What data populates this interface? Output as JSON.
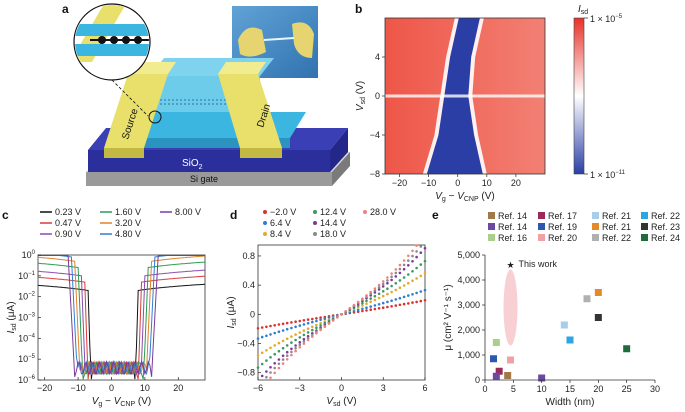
{
  "figure": {
    "panel_letters": [
      "a",
      "b",
      "c",
      "d",
      "e"
    ],
    "panel_a": {
      "source_label": "Source",
      "drain_label": "Drain",
      "oxide_label": "SiO",
      "oxide_subscript": "2",
      "gate_label": "Si gate"
    },
    "panel_b": {
      "colorbar_title": "I",
      "colorbar_title_sub": "sd",
      "colorbar_max": "1 × 10",
      "colorbar_max_exp": "−5",
      "colorbar_min": "1 × 10",
      "colorbar_min_exp": "−11"
    }
  },
  "chart_data": [
    {
      "panel": "b",
      "type": "heatmap",
      "xlabel": "V_g − V_CNP (V)",
      "ylabel": "V_sd (V)",
      "xlim": [
        -25,
        30
      ],
      "ylim": [
        -8,
        8
      ],
      "x_ticks": [
        -20,
        -10,
        0,
        10,
        20
      ],
      "y_ticks": [
        -8,
        -4,
        0,
        4
      ],
      "colormap": [
        "#2a3ea6",
        "#ffffff",
        "#e8312a"
      ],
      "low_region_edges": {
        "vsd": [
          8,
          4,
          0,
          -4,
          -8
        ],
        "left_vg": [
          -1,
          -4,
          -6,
          -8,
          -12
        ],
        "right_vg": [
          9,
          6,
          5,
          7,
          10
        ]
      }
    },
    {
      "panel": "c",
      "type": "line",
      "xlabel": "V_g − V_CNP (V)",
      "ylabel": "I_sd (μA)",
      "yscale": "log",
      "xlim": [
        -22,
        28
      ],
      "ylim": [
        1e-06,
        1
      ],
      "x_ticks": [
        -20,
        -10,
        0,
        10,
        20
      ],
      "y_ticks": [
        "10^0",
        "10^-1",
        "10^-2",
        "10^-3",
        "10^-4",
        "10^-5",
        "10^-6"
      ],
      "series": [
        {
          "name": "0.23 V",
          "color": "#111111",
          "on": 0.02,
          "left_edge": -7,
          "right_edge": 8
        },
        {
          "name": "0.47 V",
          "color": "#d93b3b",
          "on": 0.05,
          "left_edge": -8,
          "right_edge": 9
        },
        {
          "name": "0.90 V",
          "color": "#8a4bb0",
          "on": 0.1,
          "left_edge": -9,
          "right_edge": 10
        },
        {
          "name": "1.60 V",
          "color": "#2e9a52",
          "on": 0.25,
          "left_edge": -10,
          "right_edge": 11
        },
        {
          "name": "3.20 V",
          "color": "#e0832a",
          "on": 0.5,
          "left_edge": -11,
          "right_edge": 12
        },
        {
          "name": "4.80 V",
          "color": "#2f7fd0",
          "on": 0.8,
          "left_edge": -12,
          "right_edge": 13
        },
        {
          "name": "8.00 V",
          "color": "#7a3a9a",
          "on": 1.2,
          "left_edge": -13,
          "right_edge": 14
        }
      ]
    },
    {
      "panel": "d",
      "type": "scatter",
      "xlabel": "V_sd (V)",
      "ylabel": "I_sd (μA)",
      "xlim": [
        -6,
        6
      ],
      "ylim": [
        -0.9,
        0.95
      ],
      "x_ticks": [
        -6,
        -3,
        0,
        3,
        6
      ],
      "y_ticks": [
        -0.8,
        -0.4,
        0,
        0.4,
        0.8
      ],
      "series": [
        {
          "name": "−2.0 V",
          "color": "#d9342b",
          "slope": 0.03
        },
        {
          "name": "6.4 V",
          "color": "#2f7fd0",
          "slope": 0.05
        },
        {
          "name": "8.4 V",
          "color": "#e5a92b",
          "slope": 0.08
        },
        {
          "name": "12.4 V",
          "color": "#3a9a62",
          "slope": 0.1
        },
        {
          "name": "14.4 V",
          "color": "#7a3a9a",
          "slope": 0.12
        },
        {
          "name": "18.0 V",
          "color": "#8a8a8a",
          "slope": 0.13
        },
        {
          "name": "28.0 V",
          "color": "#f08080",
          "slope": 0.14
        }
      ]
    },
    {
      "panel": "e",
      "type": "scatter",
      "xlabel": "Width (nm)",
      "ylabel": "μ (cm² V⁻¹ s⁻¹)",
      "xlim": [
        0,
        30
      ],
      "ylim": [
        0,
        5000
      ],
      "x_ticks": [
        0,
        5,
        10,
        15,
        20,
        25,
        30
      ],
      "y_ticks": [
        0,
        1000,
        2000,
        3000,
        4000,
        5000
      ],
      "this_work": {
        "label": "This work",
        "x": 4.5,
        "y": 4650,
        "color": "#d9342b"
      },
      "legend": [
        {
          "name": "Ref. 14",
          "color": "#a0784a"
        },
        {
          "name": "Ref. 17",
          "color": "#9b2a5a"
        },
        {
          "name": "Ref. 21",
          "color": "#a9cde8"
        },
        {
          "name": "Ref. 22",
          "color": "#2aa7df"
        },
        {
          "name": "Ref. 14",
          "color": "#6a4aa0"
        },
        {
          "name": "Ref. 19",
          "color": "#2e58b0"
        },
        {
          "name": "Ref. 21",
          "color": "#e58a2a"
        },
        {
          "name": "Ref. 23",
          "color": "#333333"
        },
        {
          "name": "Ref. 16",
          "color": "#a8d08a"
        },
        {
          "name": "Ref. 20",
          "color": "#f0a0a8"
        },
        {
          "name": "Ref. 22",
          "color": "#b0b0b0"
        },
        {
          "name": "Ref. 24",
          "color": "#1e6b3c"
        }
      ],
      "points": [
        {
          "x": 2,
          "y": 1500,
          "color": "#a8d08a"
        },
        {
          "x": 1.5,
          "y": 850,
          "color": "#2e58b0"
        },
        {
          "x": 2.5,
          "y": 350,
          "color": "#9b2a5a"
        },
        {
          "x": 2,
          "y": 150,
          "color": "#6a4aa0"
        },
        {
          "x": 4.5,
          "y": 800,
          "color": "#f0a0a8"
        },
        {
          "x": 4,
          "y": 180,
          "color": "#a0784a"
        },
        {
          "x": 10,
          "y": 80,
          "color": "#6a4aa0"
        },
        {
          "x": 14,
          "y": 2200,
          "color": "#a9cde8"
        },
        {
          "x": 15,
          "y": 1600,
          "color": "#2aa7df"
        },
        {
          "x": 18,
          "y": 3250,
          "color": "#b0b0b0"
        },
        {
          "x": 20,
          "y": 3500,
          "color": "#e58a2a"
        },
        {
          "x": 20,
          "y": 2500,
          "color": "#333333"
        },
        {
          "x": 25,
          "y": 1250,
          "color": "#1e6b3c"
        }
      ]
    }
  ]
}
